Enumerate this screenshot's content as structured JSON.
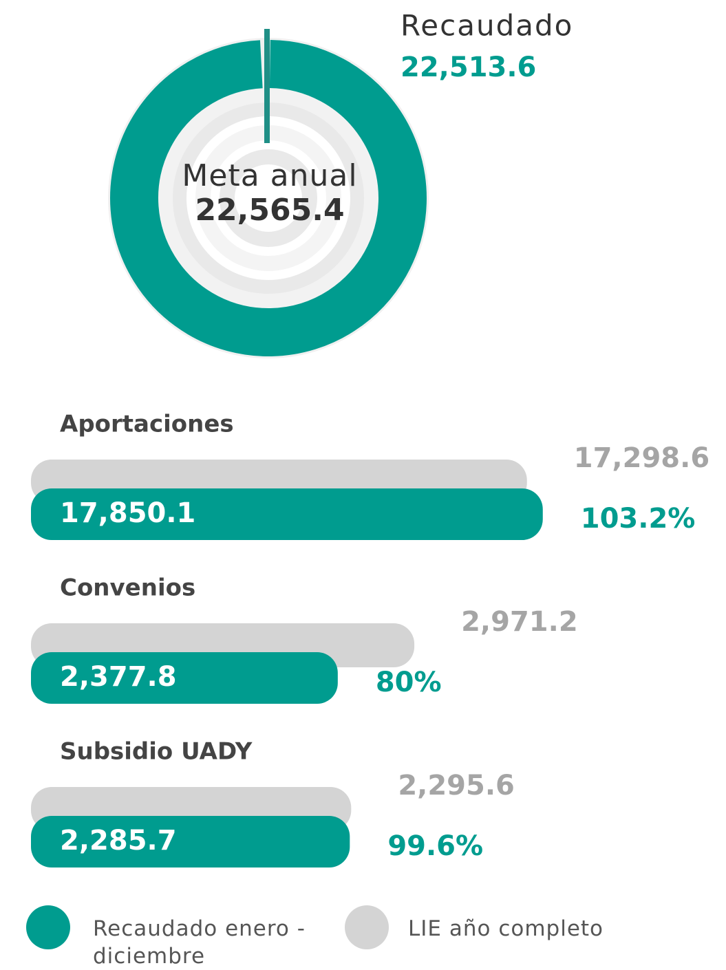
{
  "chart_data": [
    {
      "type": "donut",
      "series": [
        {
          "name": "Recaudado",
          "color": "#009c8f",
          "values": [
            22513.6
          ],
          "value_labels": [
            "22,513.6"
          ]
        },
        {
          "name": "Meta anual",
          "color": "#1f8f86",
          "values": [
            22565.4
          ],
          "value_labels": [
            "22,565.4"
          ]
        }
      ]
    },
    {
      "type": "bar",
      "categories": [
        "Aportaciones",
        "Convenios",
        "Subsidio UADY"
      ],
      "xlims": [
        [
          0,
          18000
        ],
        [
          0,
          4000
        ],
        [
          0,
          3700
        ]
      ],
      "series": [
        {
          "name": "Recaudado enero - diciembre",
          "color": "#009c8f",
          "values": [
            17850.1,
            2377.8,
            2285.7
          ],
          "value_labels": [
            "17,850.1",
            "2,377.8",
            "2,285.7"
          ]
        },
        {
          "name": "LIE año completo",
          "color": "#d4d4d4",
          "values": [
            17298.6,
            2971.2,
            2295.6
          ],
          "value_labels": [
            "17,298.6",
            "2,971.2",
            "2,295.6"
          ]
        }
      ],
      "percent_values": [
        103.2,
        80,
        99.6
      ],
      "percent_labels": [
        "103.2%",
        "80%",
        "99.6%"
      ]
    }
  ]
}
